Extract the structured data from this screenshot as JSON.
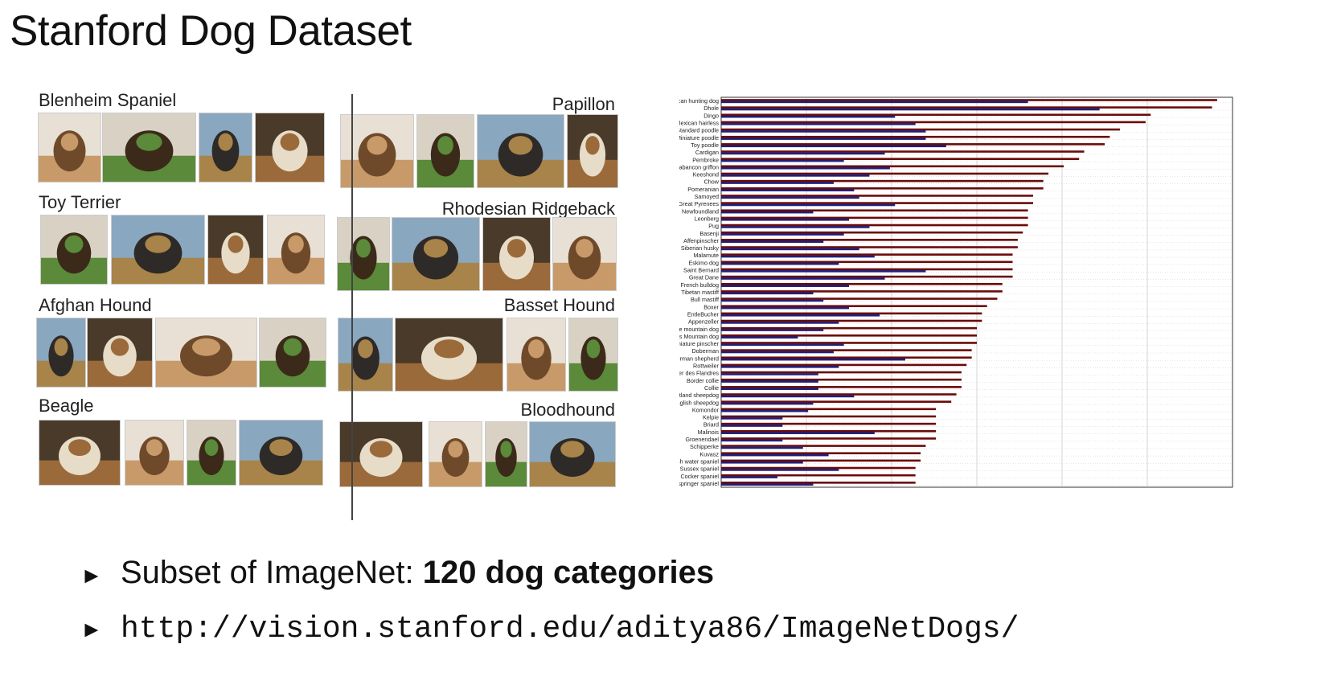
{
  "title": "Stanford Dog Dataset",
  "collage": {
    "breeds": [
      "Blenheim Spaniel",
      "Toy Terrier",
      "Afghan Hound",
      "Beagle",
      "Papillon",
      "Rhodesian Ridgeback",
      "Basset Hound",
      "Bloodhound"
    ]
  },
  "bullets": {
    "b1_prefix": "Subset of ImageNet: ",
    "b1_bold": "120 dog categories",
    "b2": "http://vision.stanford.edu/aditya86/ImageNetDogs/"
  },
  "chart_data": {
    "type": "bar",
    "orientation": "horizontal",
    "categories": [
      "African hunting dog",
      "Dhole",
      "Dingo",
      "Mexican hairless",
      "Standard poodle",
      "Miniature poodle",
      "Toy poodle",
      "Cardigan",
      "Pembroke",
      "Brabancon griffon",
      "Keeshond",
      "Chow",
      "Pomeranian",
      "Samoyed",
      "Great Pyrenees",
      "Newfoundland",
      "Leonberg",
      "Pug",
      "Basenji",
      "Affenpinscher",
      "Siberian husky",
      "Malamute",
      "Eskimo dog",
      "Saint Bernard",
      "Great Dane",
      "French bulldog",
      "Tibetan mastiff",
      "Bull mastiff",
      "Boxer",
      "EntleBucher",
      "Appenzeller",
      "Bernese mountain dog",
      "Greater Swiss Mountain dog",
      "Miniature pinscher",
      "Doberman",
      "German shepherd",
      "Rottweiler",
      "Bouvier des Flandres",
      "Border collie",
      "Collie",
      "Shetland sheepdog",
      "Old English sheepdog",
      "Komondor",
      "Kelpie",
      "Briard",
      "Malinois",
      "Groenendael",
      "Schipperke",
      "Kuvasz",
      "Irish water spaniel",
      "Sussex spaniel",
      "Cocker spaniel",
      "Welsh springer spaniel"
    ],
    "series": [
      {
        "color": "#6b0a0a",
        "values": [
          0.97,
          0.96,
          0.84,
          0.83,
          0.78,
          0.76,
          0.75,
          0.71,
          0.7,
          0.67,
          0.64,
          0.63,
          0.63,
          0.61,
          0.61,
          0.6,
          0.6,
          0.6,
          0.59,
          0.58,
          0.58,
          0.57,
          0.57,
          0.57,
          0.57,
          0.55,
          0.55,
          0.54,
          0.52,
          0.51,
          0.51,
          0.5,
          0.5,
          0.5,
          0.49,
          0.49,
          0.48,
          0.47,
          0.47,
          0.47,
          0.46,
          0.45,
          0.42,
          0.42,
          0.42,
          0.42,
          0.42,
          0.4,
          0.39,
          0.39,
          0.38,
          0.38,
          0.38
        ]
      },
      {
        "color": "#1f1f7a",
        "values": [
          0.6,
          0.74,
          0.34,
          0.38,
          0.4,
          0.4,
          0.44,
          0.32,
          0.24,
          0.33,
          0.29,
          0.22,
          0.26,
          0.27,
          0.34,
          0.18,
          0.25,
          0.29,
          0.24,
          0.2,
          0.27,
          0.3,
          0.23,
          0.4,
          0.32,
          0.25,
          0.18,
          0.2,
          0.25,
          0.31,
          0.23,
          0.2,
          0.15,
          0.24,
          0.22,
          0.36,
          0.23,
          0.19,
          0.19,
          0.19,
          0.26,
          0.18,
          0.17,
          0.12,
          0.12,
          0.3,
          0.12,
          0.16,
          0.21,
          0.16,
          0.23,
          0.11,
          0.18
        ]
      }
    ],
    "xlim": [
      0,
      1
    ],
    "grid": true
  }
}
